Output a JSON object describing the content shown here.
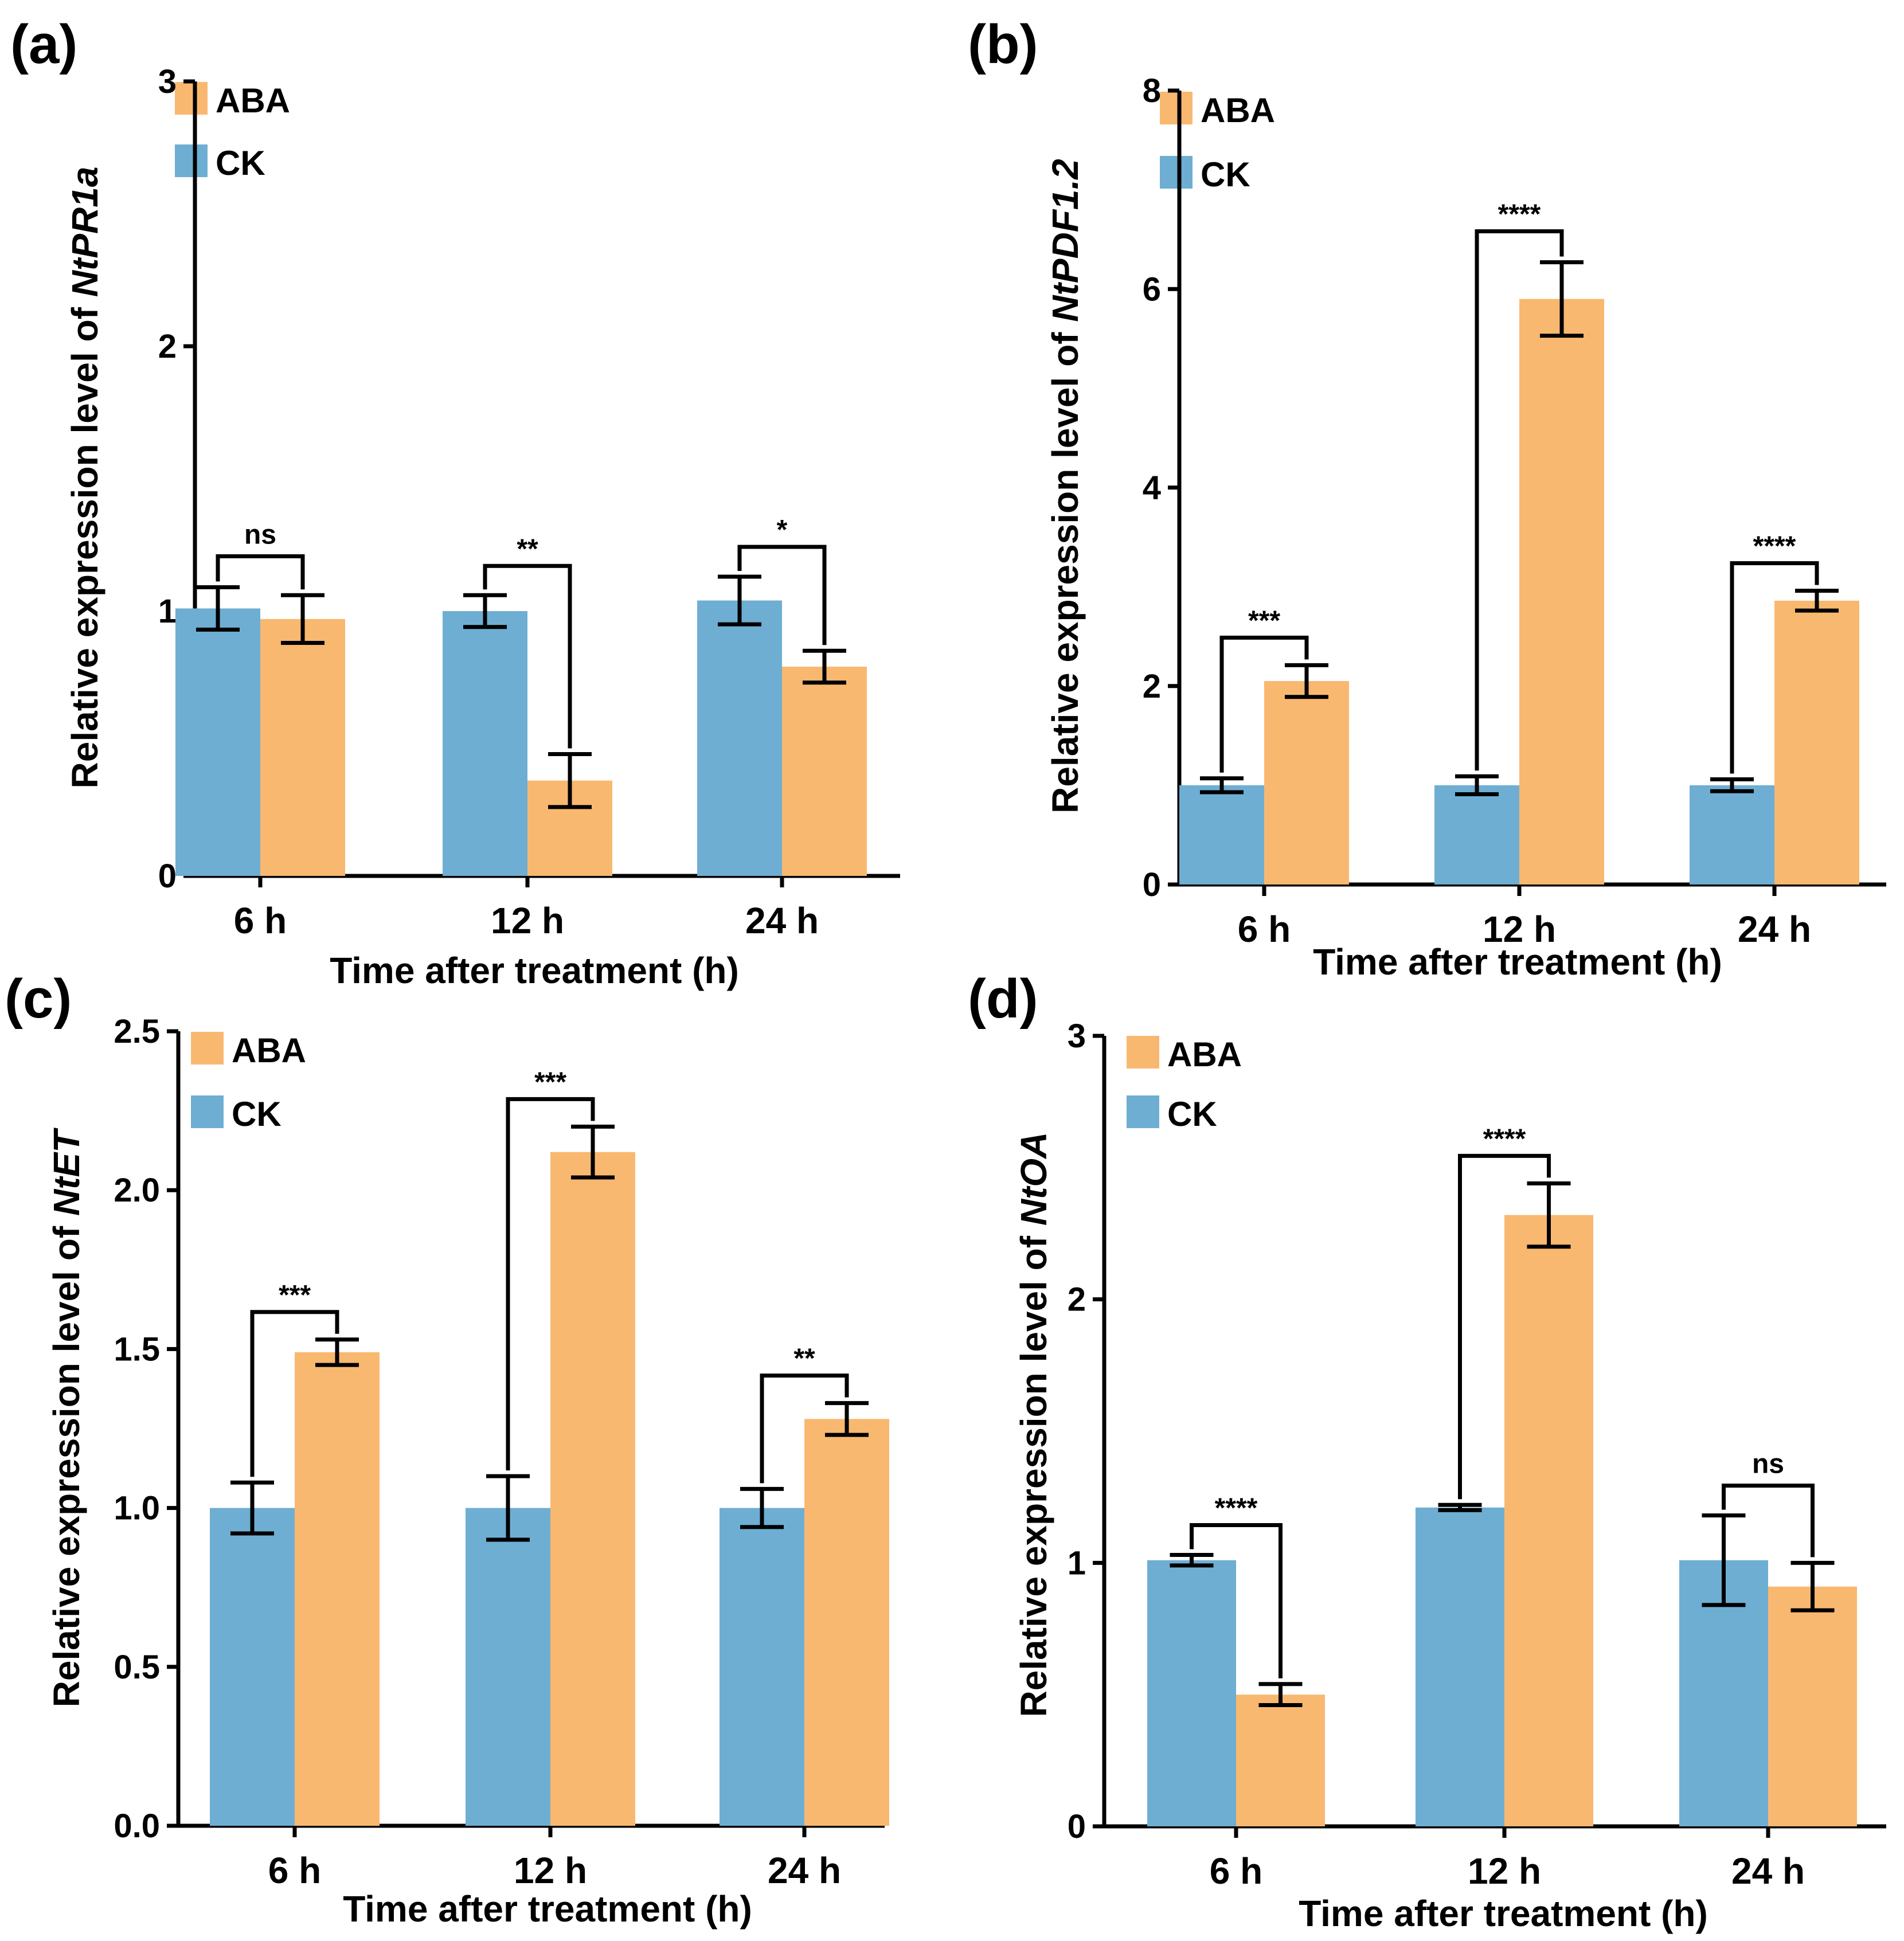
{
  "figure": {
    "x_title": "Time after treatment (h)",
    "categories": [
      "6 h",
      "12 h",
      "24 h"
    ],
    "legend": {
      "aba": "ABA",
      "ck": "CK"
    },
    "colors": {
      "ck": "#6EAED3",
      "aba": "#F9B870"
    }
  },
  "chart_data": [
    {
      "type": "bar",
      "panel_label": "(a)",
      "ylabel_prefix": "Relative expression level of ",
      "ylabel_gene": "NtPR1a",
      "xlabel": "Time after treatment (h)",
      "categories": [
        "6 h",
        "12 h",
        "24 h"
      ],
      "ylim": [
        0,
        3
      ],
      "yticks": [
        "0",
        "1",
        "2",
        "3"
      ],
      "ytick_values": [
        0,
        1,
        2,
        3
      ],
      "legend_position": "top-left",
      "series": [
        {
          "name": "CK",
          "values": [
            1.01,
            1.0,
            1.04
          ],
          "errors": [
            0.08,
            0.06,
            0.09
          ]
        },
        {
          "name": "ABA",
          "values": [
            0.97,
            0.36,
            0.79
          ],
          "errors": [
            0.09,
            0.1,
            0.06
          ]
        }
      ],
      "significance": [
        "ns",
        "**",
        "*"
      ]
    },
    {
      "type": "bar",
      "panel_label": "(b)",
      "ylabel_prefix": "Relative expression level of ",
      "ylabel_gene": "NtPDF1.2",
      "xlabel": "Time after treatment (h)",
      "categories": [
        "6 h",
        "12 h",
        "24 h"
      ],
      "ylim": [
        0,
        8
      ],
      "yticks": [
        "0",
        "2",
        "4",
        "6",
        "8"
      ],
      "ytick_values": [
        0,
        2,
        4,
        6,
        8
      ],
      "legend_position": "top-left",
      "series": [
        {
          "name": "CK",
          "values": [
            1.0,
            1.0,
            1.0
          ],
          "errors": [
            0.07,
            0.09,
            0.06
          ]
        },
        {
          "name": "ABA",
          "values": [
            2.05,
            5.9,
            2.86
          ],
          "errors": [
            0.16,
            0.37,
            0.1
          ]
        }
      ],
      "significance": [
        "***",
        "****",
        "****"
      ]
    },
    {
      "type": "bar",
      "panel_label": "(c)",
      "ylabel_prefix": "Relative expression level of ",
      "ylabel_gene": "NtET",
      "xlabel": "Time after treatment (h)",
      "categories": [
        "6 h",
        "12 h",
        "24 h"
      ],
      "ylim": [
        0,
        2.5
      ],
      "yticks": [
        "0.0",
        "0.5",
        "1.0",
        "1.5",
        "2.0",
        "2.5"
      ],
      "ytick_values": [
        0,
        0.5,
        1,
        1.5,
        2,
        2.5
      ],
      "legend_position": "top-left",
      "series": [
        {
          "name": "CK",
          "values": [
            1.0,
            1.0,
            1.0
          ],
          "errors": [
            0.08,
            0.1,
            0.06
          ]
        },
        {
          "name": "ABA",
          "values": [
            1.49,
            2.12,
            1.28
          ],
          "errors": [
            0.04,
            0.08,
            0.05
          ]
        }
      ],
      "significance": [
        "***",
        "***",
        "**"
      ]
    },
    {
      "type": "bar",
      "panel_label": "(d)",
      "ylabel_prefix": "Relative expression level of ",
      "ylabel_gene": "NtOA",
      "xlabel": "Time after treatment (h)",
      "categories": [
        "6 h",
        "12 h",
        "24 h"
      ],
      "ylim": [
        0,
        3
      ],
      "yticks": [
        "0",
        "1",
        "2",
        "3"
      ],
      "ytick_values": [
        0,
        1,
        2,
        3
      ],
      "legend_position": "top-left",
      "series": [
        {
          "name": "CK",
          "values": [
            1.01,
            1.21,
            1.01
          ],
          "errors": [
            0.02,
            0.01,
            0.17
          ]
        },
        {
          "name": "ABA",
          "values": [
            0.5,
            2.32,
            0.91
          ],
          "errors": [
            0.04,
            0.12,
            0.09
          ]
        }
      ],
      "significance": [
        "****",
        "****",
        "ns"
      ]
    }
  ]
}
